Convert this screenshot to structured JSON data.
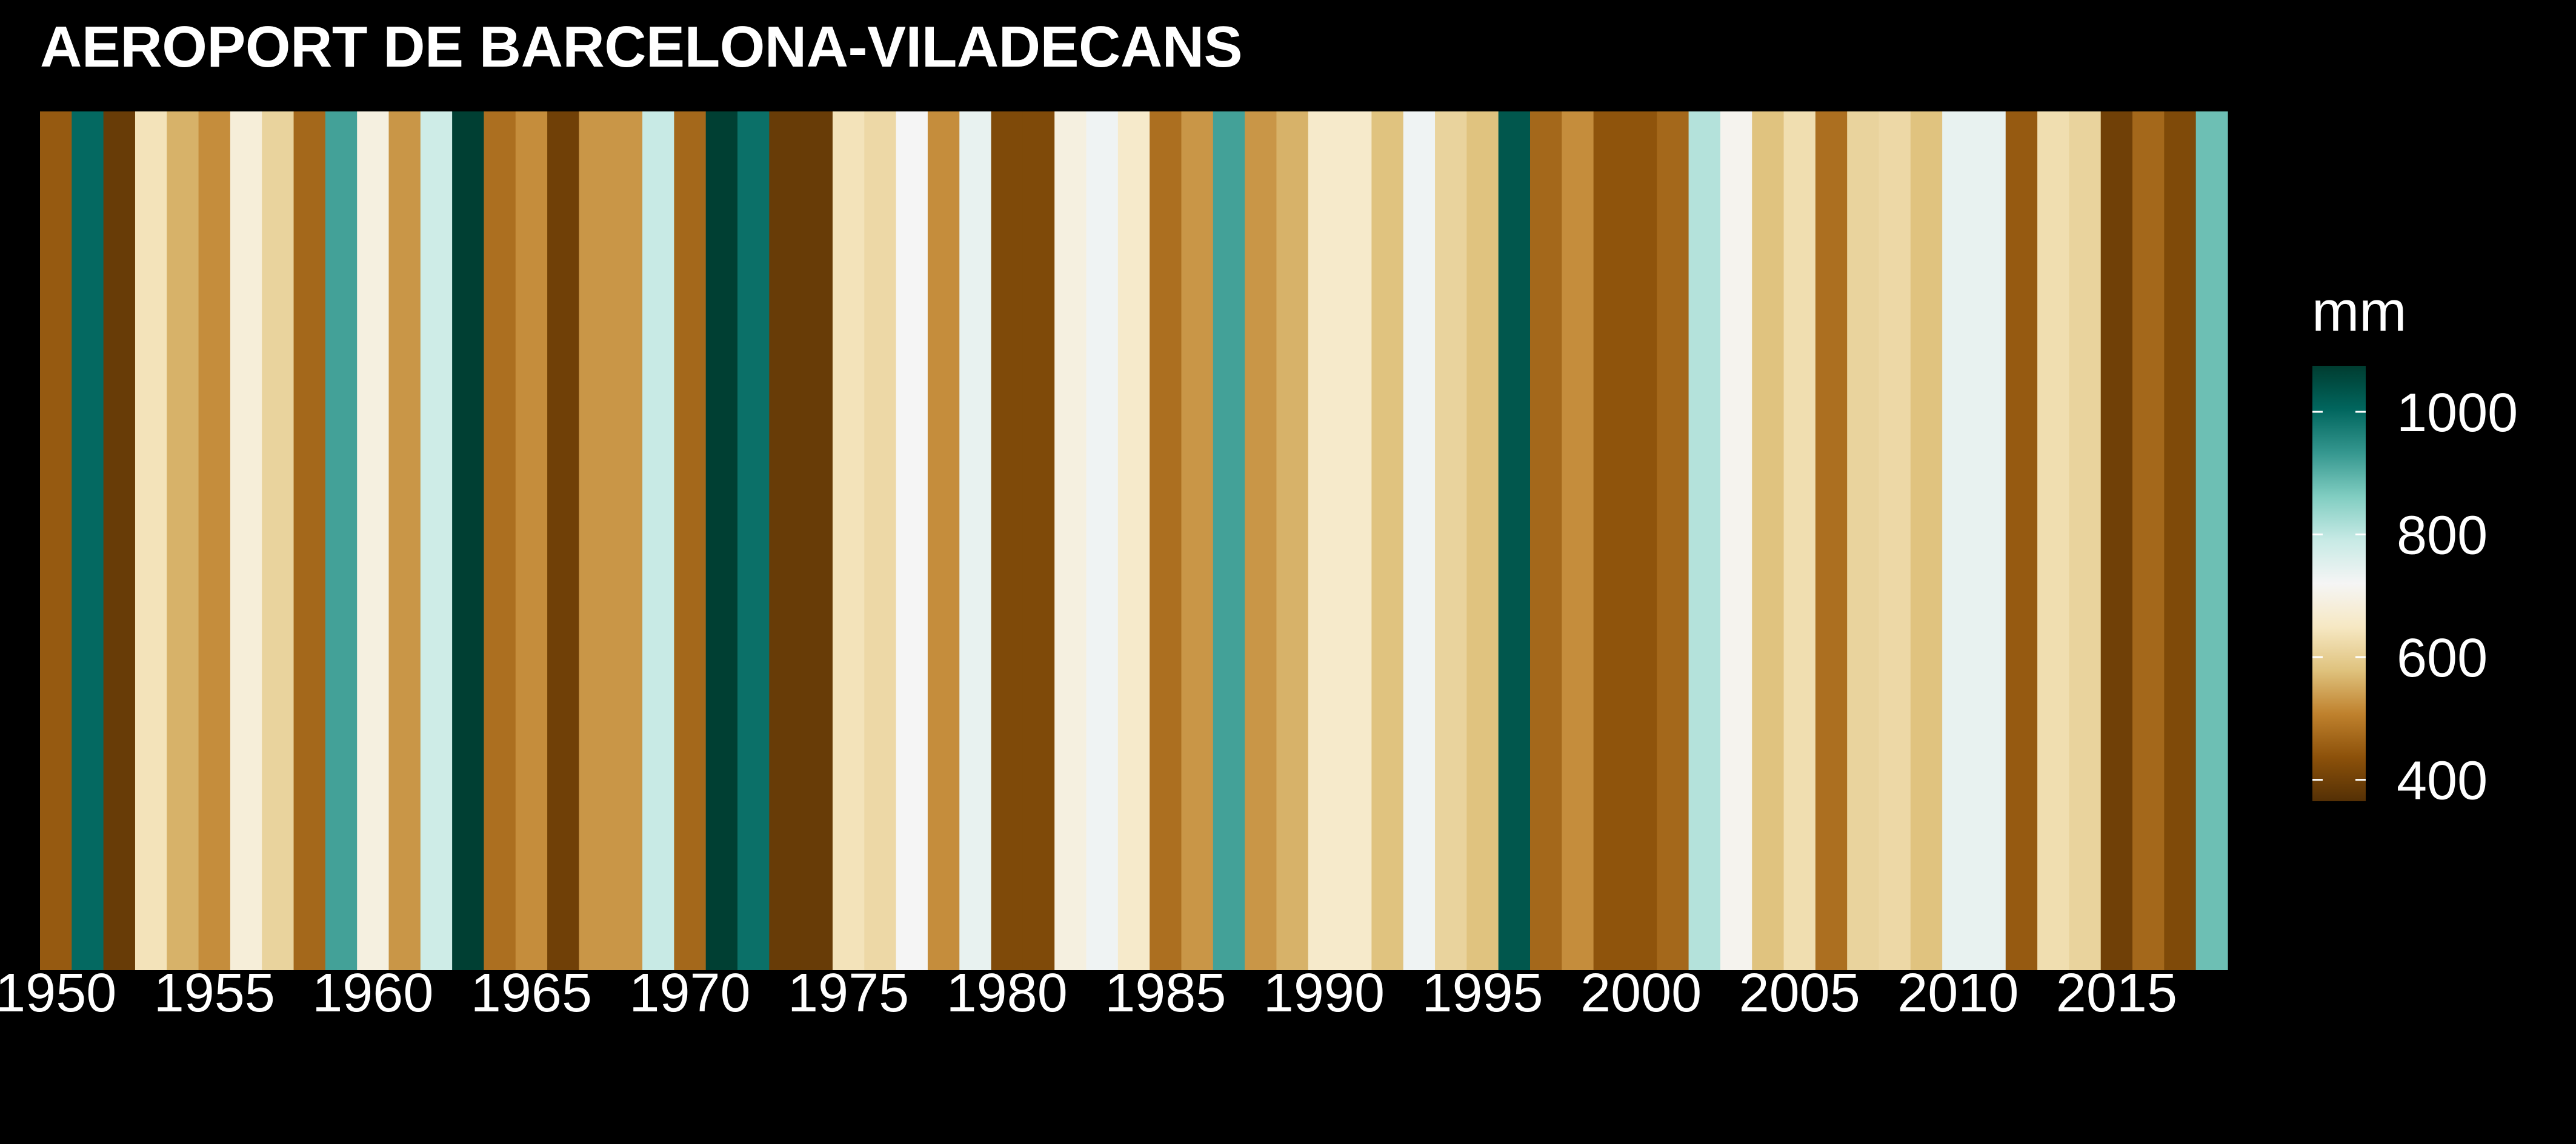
{
  "colors": {
    "background": "#000000",
    "text": "#ffffff",
    "palette": [
      "#543005",
      "#8c510a",
      "#bf812d",
      "#dfc27d",
      "#f6e8c3",
      "#f5f5f5",
      "#c7eae5",
      "#80cdc1",
      "#35978f",
      "#01665e",
      "#003c30"
    ]
  },
  "chart_data": {
    "type": "heatmap",
    "title": "AEROPORT DE BARCELONA-VILADECANS",
    "xlabel": "",
    "ylabel": "",
    "x_ticks": [
      "1950",
      "1955",
      "1960",
      "1965",
      "1970",
      "1975",
      "1980",
      "1985",
      "1990",
      "1995",
      "2000",
      "2005",
      "2010",
      "2015"
    ],
    "legend": {
      "title": "mm",
      "placement": "right",
      "ticks": [
        "400",
        "600",
        "800",
        "1000"
      ],
      "range": [
        365,
        1075
      ]
    },
    "years": [
      1950,
      1951,
      1952,
      1953,
      1954,
      1955,
      1956,
      1957,
      1958,
      1959,
      1960,
      1961,
      1962,
      1963,
      1964,
      1965,
      1966,
      1967,
      1968,
      1969,
      1970,
      1971,
      1972,
      1973,
      1974,
      1975,
      1976,
      1977,
      1978,
      1979,
      1980,
      1981,
      1982,
      1983,
      1984,
      1985,
      1986,
      1987,
      1988,
      1989,
      1990,
      1991,
      1992,
      1993,
      1994,
      1995,
      1996,
      1997,
      1998,
      1999,
      2000,
      2001,
      2002,
      2003,
      2004,
      2005,
      2006,
      2007,
      2008,
      2009,
      2010,
      2011,
      2012,
      2013,
      2014,
      2015,
      2016,
      2017,
      2018
    ],
    "values": [
      450,
      1000,
      390,
      640,
      560,
      520,
      680,
      610,
      470,
      920,
      690,
      530,
      780,
      1070,
      480,
      520,
      400,
      530,
      530,
      790,
      470,
      1070,
      990,
      390,
      390,
      640,
      620,
      720,
      520,
      740,
      420,
      420,
      690,
      730,
      660,
      480,
      530,
      920,
      530,
      560,
      660,
      660,
      580,
      730,
      610,
      580,
      1030,
      470,
      520,
      440,
      440,
      470,
      810,
      710,
      580,
      630,
      480,
      610,
      620,
      580,
      740,
      740,
      450,
      630,
      610,
      400,
      470,
      420,
      880
    ],
    "grid": false
  }
}
